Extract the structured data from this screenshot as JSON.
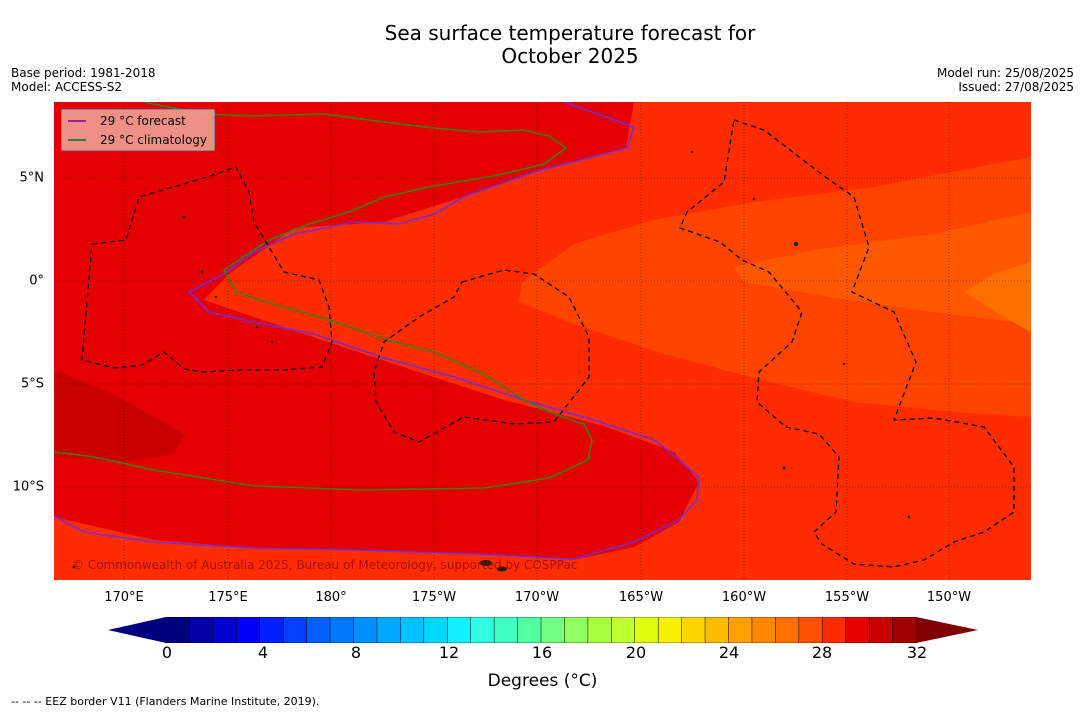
{
  "title": {
    "line1": "Sea surface temperature forecast for",
    "line2": "October 2025"
  },
  "meta": {
    "base_period": "Base period: 1981-2018",
    "model": "Model: ACCESS-S2",
    "model_run": "Model run: 25/08/2025",
    "issued": "Issued: 27/08/2025"
  },
  "legend": {
    "forecast": "29 °C  forecast",
    "climatology": "29 °C  climatology",
    "forecast_color": "#a020a0",
    "climatology_color": "#2e7d32"
  },
  "axes": {
    "longitude_labels": [
      "170°E",
      "175°E",
      "180°",
      "175°W",
      "170°W",
      "165°W",
      "160°W",
      "155°W",
      "150°W"
    ],
    "latitude_labels": [
      "5°N",
      "0°",
      "5°S",
      "10°S"
    ]
  },
  "copyright": "© Commonwealth of Australia 2025, Bureau of Meteorology, supported by COSPPac",
  "colorbar": {
    "ticks": [
      "0",
      "4",
      "8",
      "12",
      "16",
      "20",
      "24",
      "28",
      "32"
    ],
    "title": "Degrees (°C)",
    "colors": [
      "#00007f",
      "#0000a8",
      "#0000d0",
      "#0000f8",
      "#0020ff",
      "#0040ff",
      "#0060ff",
      "#0078ff",
      "#0090ff",
      "#00a8ff",
      "#00c0ff",
      "#00d8ff",
      "#10f0ff",
      "#30ffe0",
      "#40ffc0",
      "#50ffa0",
      "#70ff80",
      "#90ff60",
      "#a8ff40",
      "#c0ff30",
      "#e0ff10",
      "#f8f000",
      "#ffd400",
      "#ffbc00",
      "#ffa000",
      "#ff8800",
      "#ff7000",
      "#ff5000",
      "#ff2c00",
      "#e80000",
      "#c80000",
      "#9f0000"
    ],
    "under_color": "#00007f",
    "over_color": "#7f0000"
  },
  "footer": "--  --  -- EEZ border V11 (Flanders Marine Institute, 2019)."
}
